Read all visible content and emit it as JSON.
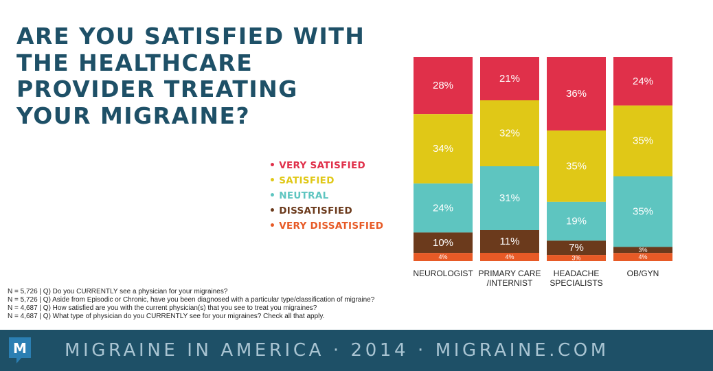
{
  "title_lines": [
    "ARE YOU SATISFIED WITH",
    "THE HEALTHCARE",
    "PROVIDER TREATING",
    "YOUR MIGRAINE?"
  ],
  "legend": [
    {
      "label": "VERY SATISFIED",
      "color": "#e0304a"
    },
    {
      "label": "SATISFIED",
      "color": "#e0c817"
    },
    {
      "label": "NEUTRAL",
      "color": "#5ec5c0"
    },
    {
      "label": "DISSATISFIED",
      "color": "#6b3a1c"
    },
    {
      "label": "VERY DISSATISFIED",
      "color": "#e75a26"
    }
  ],
  "chart_data": {
    "type": "bar",
    "stacked": true,
    "normalized_percent": true,
    "categories": [
      [
        "NEUROLOGIST"
      ],
      [
        "PRIMARY CARE",
        "/INTERNIST"
      ],
      [
        "HEADACHE",
        "SPECIALISTS"
      ],
      [
        "OB/GYN"
      ]
    ],
    "series": [
      {
        "name": "VERY SATISFIED",
        "color": "#e0304a",
        "values": [
          28,
          21,
          36,
          24
        ],
        "labels": [
          "28%",
          "21%",
          "36%",
          "24%"
        ]
      },
      {
        "name": "SATISFIED",
        "color": "#e0c817",
        "values": [
          34,
          32,
          35,
          35
        ],
        "labels": [
          "34%",
          "32%",
          "35%",
          "35%"
        ]
      },
      {
        "name": "NEUTRAL",
        "color": "#5ec5c0",
        "values": [
          24,
          31,
          19,
          35
        ],
        "labels": [
          "24%",
          "31%",
          "19%",
          "35%"
        ]
      },
      {
        "name": "DISSATISFIED",
        "color": "#6b3a1c",
        "values": [
          10,
          11,
          7,
          3
        ],
        "labels": [
          "10%",
          "11%",
          "7%",
          "3%"
        ]
      },
      {
        "name": "VERY DISSATISFIED",
        "color": "#e75a26",
        "values": [
          4,
          4,
          3,
          4
        ],
        "labels": [
          "4%",
          "4%",
          "3%",
          "4%"
        ]
      }
    ]
  },
  "notes": [
    "N = 5,726  |  Q) Do you CURRENTLY see a physician for your migraines?",
    "N = 5,726  |  Q) Aside from Episodic or Chronic, have you been diagnosed with a particular type/classification of migraine?",
    "N = 4,687  |  Q) How satisfied are you with the current physician(s) that you see to treat you migraines?",
    "N = 4,687  |  Q) What type of physician do you CURRENTLY see for your migraines? Check all that apply."
  ],
  "footer": {
    "text": "MIGRAINE IN AMERICA · 2014 · MIGRAINE.COM",
    "logo_letter": "M",
    "logo_color": "#2b7fb3"
  }
}
